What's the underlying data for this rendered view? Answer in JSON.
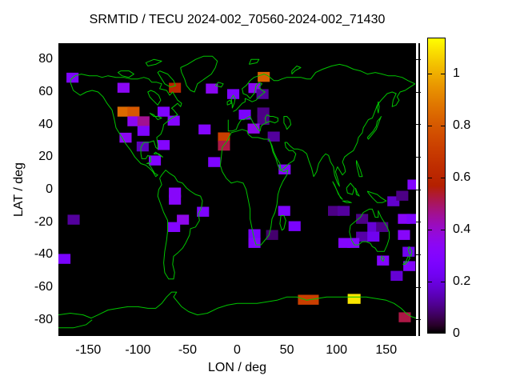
{
  "map": {
    "background": "#000000",
    "coastline_color": "#00c400",
    "page_background": "#ffffff",
    "text_color": "#000000"
  },
  "chart_data": {
    "type": "heatmap",
    "title": "SRMTID / TECU 2024-002_70560-2024-002_71430",
    "xlabel": "LON / deg",
    "ylabel": "LAT / deg",
    "xlim": [
      -180,
      180
    ],
    "ylim": [
      -90,
      90
    ],
    "x_ticks": [
      -150,
      -100,
      -50,
      0,
      50,
      100,
      150
    ],
    "y_ticks": [
      80,
      60,
      40,
      20,
      0,
      -20,
      -40,
      -60,
      -80
    ],
    "grid": false,
    "units": "TECU",
    "legend_position": "right-colorbar",
    "colorbar": {
      "min": 0,
      "max": 1.14,
      "ticks": [
        0,
        0.2,
        0.4,
        0.6,
        0.8,
        1
      ],
      "tick_labels": [
        "0",
        "0.2",
        "0.4",
        "0.6",
        "0.8",
        "1"
      ],
      "palette": "gnuplot default pm3d (black-purple-violet-red-orange-yellow)"
    },
    "cell_size_deg": {
      "lon": 12.2,
      "lat": 6.1
    },
    "cells": [
      {
        "lon": -165.8,
        "lat": 68.8,
        "value": 0.28
      },
      {
        "lon": -114.5,
        "lat": 62.6,
        "value": 0.34
      },
      {
        "lon": -62.7,
        "lat": 62.6,
        "value": 0.6
      },
      {
        "lon": -25.5,
        "lat": 62.1,
        "value": 0.34
      },
      {
        "lon": -4.0,
        "lat": 58.7,
        "value": 0.28
      },
      {
        "lon": -114.5,
        "lat": 47.9,
        "value": 0.85
      },
      {
        "lon": -104.4,
        "lat": 47.9,
        "value": 0.8
      },
      {
        "lon": -74.0,
        "lat": 47.9,
        "value": 0.28
      },
      {
        "lon": -104.4,
        "lat": 42.0,
        "value": 0.34
      },
      {
        "lon": -94.3,
        "lat": 42.0,
        "value": 0.46
      },
      {
        "lon": -63.9,
        "lat": 42.4,
        "value": 0.3
      },
      {
        "lon": -94.3,
        "lat": 36.1,
        "value": 0.28
      },
      {
        "lon": -112.4,
        "lat": 31.9,
        "value": 0.34
      },
      {
        "lon": -95.1,
        "lat": 26.5,
        "value": 0.15
      },
      {
        "lon": -74.0,
        "lat": 27.4,
        "value": 0.3
      },
      {
        "lon": -82.9,
        "lat": 17.9,
        "value": 0.3
      },
      {
        "lon": -32.8,
        "lat": 37.0,
        "value": 0.3
      },
      {
        "lon": -13.3,
        "lat": 32.1,
        "value": 0.71
      },
      {
        "lon": -13.3,
        "lat": 27.0,
        "value": 0.52
      },
      {
        "lon": -23.1,
        "lat": 16.9,
        "value": 0.28
      },
      {
        "lon": 26.7,
        "lat": 69.3,
        "value": 0.82
      },
      {
        "lon": 17.4,
        "lat": 62.4,
        "value": 0.34
      },
      {
        "lon": 25.5,
        "lat": 58.7,
        "value": 0.12
      },
      {
        "lon": 7.7,
        "lat": 46.1,
        "value": 0.26
      },
      {
        "lon": 26.3,
        "lat": 47.4,
        "value": 0.1
      },
      {
        "lon": 26.3,
        "lat": 42.9,
        "value": 0.1
      },
      {
        "lon": 16.6,
        "lat": 37.5,
        "value": 0.36
      },
      {
        "lon": 36.8,
        "lat": 32.6,
        "value": 0.12
      },
      {
        "lon": 47.7,
        "lat": 12.4,
        "value": 0.3
      },
      {
        "lon": 47.3,
        "lat": -13.1,
        "value": 0.28
      },
      {
        "lon": 57.8,
        "lat": -22.5,
        "value": 0.26
      },
      {
        "lon": 35.2,
        "lat": -27.9,
        "value": 0.08
      },
      {
        "lon": 17.4,
        "lat": -27.4,
        "value": 0.26
      },
      {
        "lon": 17.4,
        "lat": -32.8,
        "value": 0.3
      },
      {
        "lon": 97.5,
        "lat": -13.1,
        "value": 0.1
      },
      {
        "lon": 107.2,
        "lat": -13.1,
        "value": 0.12
      },
      {
        "lon": 125.8,
        "lat": -18.0,
        "value": 0.1
      },
      {
        "lon": 137.1,
        "lat": -23.0,
        "value": 0.18
      },
      {
        "lon": 146.0,
        "lat": -23.0,
        "value": 0.1
      },
      {
        "lon": 125.8,
        "lat": -28.9,
        "value": 0.13
      },
      {
        "lon": 137.1,
        "lat": -28.9,
        "value": 0.22
      },
      {
        "lon": 108.0,
        "lat": -32.8,
        "value": 0.3
      },
      {
        "lon": 116.9,
        "lat": -32.8,
        "value": 0.3
      },
      {
        "lon": 146.8,
        "lat": -43.6,
        "value": 0.3
      },
      {
        "lon": 157.3,
        "lat": -7.2,
        "value": 0.17
      },
      {
        "lon": 166.2,
        "lat": -3.8,
        "value": 0.1
      },
      {
        "lon": 177.6,
        "lat": 3.1,
        "value": 0.3
      },
      {
        "lon": 167.9,
        "lat": -18.0,
        "value": 0.32
      },
      {
        "lon": 176.8,
        "lat": -18.0,
        "value": 0.28
      },
      {
        "lon": 167.9,
        "lat": -27.9,
        "value": 0.32
      },
      {
        "lon": 172.6,
        "lat": -38.2,
        "value": 0.22
      },
      {
        "lon": 173.3,
        "lat": -47.0,
        "value": 0.3
      },
      {
        "lon": 160.6,
        "lat": -53.0,
        "value": 0.18
      },
      {
        "lon": -164.6,
        "lat": -18.5,
        "value": 0.12
      },
      {
        "lon": -173.9,
        "lat": -42.6,
        "value": 0.26
      },
      {
        "lon": -62.7,
        "lat": -1.8,
        "value": 0.32
      },
      {
        "lon": -62.7,
        "lat": -6.2,
        "value": 0.32
      },
      {
        "lon": -54.6,
        "lat": -18.5,
        "value": 0.36
      },
      {
        "lon": -63.5,
        "lat": -23.0,
        "value": 0.3
      },
      {
        "lon": -34.4,
        "lat": -13.6,
        "value": 0.28
      },
      {
        "lon": 71.6,
        "lat": -67.7,
        "value": 0.71,
        "w": 21
      },
      {
        "lon": 117.7,
        "lat": -67.2,
        "value": 1.1,
        "w": 13
      },
      {
        "lon": 168.7,
        "lat": -78.5,
        "value": 0.52
      }
    ]
  }
}
